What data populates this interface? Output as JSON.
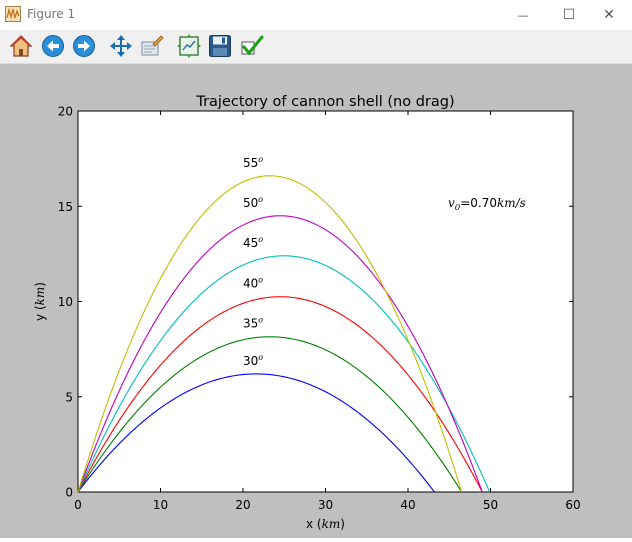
{
  "window": {
    "title": "Figure 1",
    "minimize_glyph": "—",
    "maximize_glyph": "☐",
    "close_glyph": "✕"
  },
  "toolbar": {
    "tools": [
      {
        "name": "home-icon"
      },
      {
        "name": "back-arrow-icon"
      },
      {
        "name": "forward-arrow-icon"
      },
      {
        "name": "pan-move-icon"
      },
      {
        "name": "zoom-rectangle-icon"
      },
      {
        "name": "subplots-configure-icon"
      },
      {
        "name": "save-floppy-icon"
      },
      {
        "name": "edit-checkmark-icon"
      }
    ]
  },
  "colors": {
    "canvas_bg": "#bfbfbf",
    "toolbar_bg": "#f0f0f0"
  },
  "chart_data": {
    "type": "line",
    "title": "Trajectory of cannon shell (no drag)",
    "xlabel_text": "x (",
    "xlabel_unit": "km",
    "xlabel_close": ")",
    "ylabel_text": "y (",
    "ylabel_unit": "km",
    "ylabel_close": ")",
    "xlim": [
      0,
      60
    ],
    "ylim": [
      0,
      20
    ],
    "xticks": [
      0,
      10,
      20,
      30,
      40,
      50,
      60
    ],
    "yticks": [
      0,
      5,
      10,
      15,
      20
    ],
    "grid": false,
    "annotation": {
      "var": "v",
      "sub": "0",
      "eq": "=0.70",
      "unit": "km/s"
    },
    "series": [
      {
        "label": "30",
        "angle": 30,
        "color": "#0000ff",
        "range": 43.2,
        "peak": 6.2
      },
      {
        "label": "35",
        "angle": 35,
        "color": "#008000",
        "range": 46.5,
        "peak": 8.15
      },
      {
        "label": "40",
        "angle": 40,
        "color": "#ff0000",
        "range": 49.0,
        "peak": 10.25
      },
      {
        "label": "45",
        "angle": 45,
        "color": "#00bfbf",
        "range": 49.9,
        "peak": 12.4
      },
      {
        "label": "50",
        "angle": 50,
        "color": "#bf00bf",
        "range": 49.0,
        "peak": 14.5
      },
      {
        "label": "55",
        "angle": 55,
        "color": "#bfbf00",
        "range": 46.5,
        "peak": 16.6
      }
    ],
    "degree_symbol": "o"
  }
}
